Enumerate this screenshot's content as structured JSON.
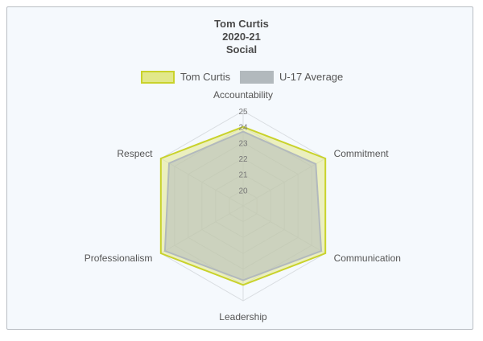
{
  "chart_data": {
    "type": "radar",
    "title": [
      "Tom Curtis",
      "2020-21",
      "Social"
    ],
    "axes": [
      "Accountability",
      "Commitment",
      "Communication",
      "Leadership",
      "Professionalism",
      "Respect"
    ],
    "r_ticks": [
      "20",
      "21",
      "22",
      "23",
      "24",
      "25"
    ],
    "r_tick_positions": [
      20,
      21,
      22,
      23,
      24,
      25
    ],
    "r_min": 19,
    "r_max": 25,
    "grid": true,
    "legend_position": "top",
    "series": [
      {
        "name": "Tom Curtis",
        "values": [
          24,
          25,
          25,
          24,
          25,
          25
        ],
        "fill": "#e2e88a",
        "stroke": "#c9d22b"
      },
      {
        "name": "U-17 Average",
        "values": [
          23.7,
          24.3,
          24.7,
          23.7,
          24.7,
          24.4
        ],
        "fill": "#b2b9bd",
        "stroke": "#b2b9bd"
      }
    ]
  }
}
